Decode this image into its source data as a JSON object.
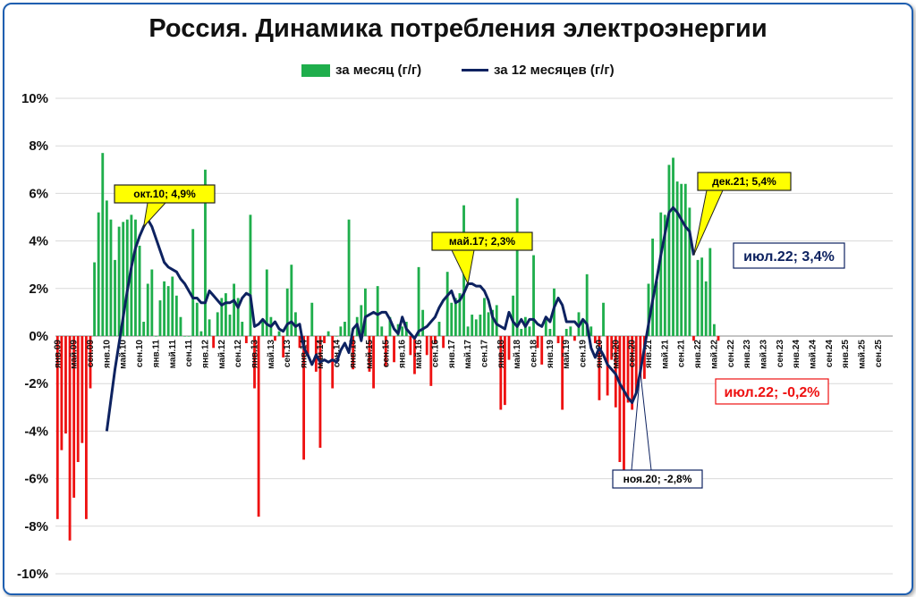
{
  "chart_data": {
    "type": "bar+line",
    "title": "Россия. Динамика потребления электроэнергии",
    "legend": {
      "placement": "top-center"
    },
    "series": [
      {
        "name": "за месяц (г/г)",
        "kind": "bar",
        "color_positive": "#1fae4c",
        "color_negative": "#ee1111"
      },
      {
        "name": "за 12 месяцев (г/г)",
        "kind": "line",
        "color": "#0d2260"
      }
    ],
    "ylim": [
      -10,
      10
    ],
    "yticks": [
      "10%",
      "8%",
      "6%",
      "4%",
      "2%",
      "0%",
      "-2%",
      "-4%",
      "-6%",
      "-8%",
      "-10%"
    ],
    "grid": true,
    "x_start": "2009-01",
    "x_end": "2025-12",
    "xticks": [
      "янв.09",
      "май.09",
      "сен.09",
      "янв.10",
      "май.10",
      "сен.10",
      "янв.11",
      "май.11",
      "сен.11",
      "янв.12",
      "май.12",
      "сен.12",
      "янв.13",
      "май.13",
      "сен.13",
      "янв.14",
      "май.14",
      "сен.14",
      "янв.15",
      "май.15",
      "сен.15",
      "янв.16",
      "май.16",
      "сен.16",
      "янв.17",
      "май.17",
      "сен.17",
      "янв.18",
      "май.18",
      "сен.18",
      "янв.19",
      "май.19",
      "сен.19",
      "янв.20",
      "май.20",
      "сен.20",
      "янв.21",
      "май.21",
      "сен.21",
      "янв.22",
      "май.22",
      "сен.22",
      "янв.23",
      "май.23",
      "сен.23",
      "янв.24",
      "май.24",
      "сен.24",
      "янв.25",
      "май.25",
      "сен.25"
    ],
    "monthly": [
      -7.7,
      -4.8,
      -4.1,
      -8.6,
      -6.8,
      -5.3,
      -4.5,
      -7.7,
      -2.2,
      3.1,
      5.2,
      7.7,
      5.7,
      4.9,
      3.2,
      4.6,
      4.8,
      4.9,
      5.1,
      4.9,
      3.8,
      0.6,
      2.2,
      2.8,
      0,
      1.5,
      2.3,
      2.1,
      2.5,
      1.7,
      0.8,
      0,
      0,
      4.5,
      1.4,
      0.2,
      7.0,
      0.7,
      -0.5,
      1.0,
      1.6,
      1.8,
      0.9,
      2.2,
      1.6,
      0.6,
      -0.3,
      5.1,
      -2.2,
      -7.6,
      0.6,
      2.8,
      0.8,
      -0.2,
      0.2,
      -0.9,
      2.0,
      3.0,
      1.0,
      -0.5,
      -5.2,
      -0.8,
      1.4,
      -1.5,
      -4.7,
      -0.3,
      0.2,
      -2.2,
      0,
      0.4,
      0.6,
      4.9,
      -1.4,
      0.8,
      1.3,
      2.0,
      -1.5,
      -2.2,
      2.1,
      0.4,
      -1.3,
      0.8,
      -1.1,
      0.5,
      0.4,
      0.6,
      -0.8,
      -1.6,
      2.9,
      1.1,
      -0.8,
      -2.1,
      -0.3,
      0.6,
      -0.5,
      2.7,
      1.4,
      1.6,
      1.8,
      5.5,
      0.4,
      0.9,
      0.7,
      0.9,
      1.6,
      1.0,
      1.1,
      1.3,
      -3.1,
      -2.9,
      -1.0,
      1.7,
      5.8,
      0.3,
      0.8,
      0.4,
      3.4,
      -0.5,
      -1.2,
      0.8,
      0.3,
      2.0,
      -0.3,
      -3.1,
      0.3,
      0.4,
      -0.2,
      1.0,
      0.6,
      2.6,
      0.4,
      -0.3,
      -2.7,
      1.4,
      -2.5,
      -1.0,
      -3.0,
      -5.3,
      -5.7,
      -2.8,
      -3.1,
      -2.4,
      -2.6,
      -1.8,
      2.2,
      4.1,
      2.3,
      5.2,
      5.1,
      7.2,
      7.5,
      6.5,
      6.4,
      6.4,
      5.4,
      -0.2,
      3.2,
      3.3,
      2.3,
      3.7,
      0.5,
      -0.2
    ],
    "rolling_12m": [
      null,
      null,
      null,
      null,
      null,
      null,
      null,
      null,
      null,
      null,
      null,
      null,
      -4.0,
      -2.7,
      -1.4,
      -0.3,
      0.8,
      1.9,
      2.9,
      3.7,
      4.2,
      4.6,
      4.9,
      4.6,
      4.1,
      3.6,
      3.1,
      2.9,
      2.8,
      2.7,
      2.4,
      2.2,
      1.9,
      1.6,
      1.6,
      1.4,
      1.4,
      1.9,
      1.7,
      1.5,
      1.3,
      1.4,
      1.4,
      1.5,
      1.2,
      1.6,
      1.8,
      1.7,
      0.4,
      0.5,
      0.7,
      0.5,
      0.4,
      0.6,
      0.3,
      0.2,
      0.5,
      0.6,
      0.4,
      0.5,
      -0.5,
      -0.8,
      -1.2,
      -0.8,
      -1.1,
      -1.0,
      -1.1,
      -1.0,
      -1.1,
      -0.6,
      -0.3,
      -0.7,
      0.3,
      0.5,
      -0.2,
      0.8,
      0.9,
      1.0,
      0.9,
      1.0,
      1.0,
      0.7,
      0.3,
      0.1,
      0.8,
      0.3,
      0.1,
      -0.1,
      0.2,
      0.3,
      0.4,
      0.6,
      0.8,
      1.2,
      1.5,
      1.7,
      1.9,
      1.4,
      1.5,
      1.8,
      2.2,
      2.2,
      2.1,
      2.1,
      1.9,
      1.5,
      0.8,
      0.5,
      0.4,
      0.3,
      1.0,
      0.6,
      0.4,
      0.7,
      0.4,
      0.7,
      0.7,
      0.5,
      0.4,
      0.8,
      0.6,
      1.2,
      1.6,
      1.3,
      0.6,
      0.6,
      0.6,
      0.4,
      0.7,
      0.5,
      -0.5,
      -0.9,
      -0.5,
      -0.8,
      -1.2,
      -1.4,
      -1.6,
      -2.0,
      -2.3,
      -2.6,
      -2.8,
      -2.4,
      -1.5,
      -0.5,
      0.5,
      1.5,
      2.4,
      3.4,
      4.3,
      5.2,
      5.4,
      5.2,
      4.9,
      4.6,
      4.4,
      3.4
    ],
    "annotations": [
      {
        "label": "окт.10; 4,9%",
        "style": "yellow"
      },
      {
        "label": "май.17; 2,3%",
        "style": "yellow"
      },
      {
        "label": "ноя.20; -2,8%",
        "style": "white-navy"
      },
      {
        "label": "дек.21; 5,4%",
        "style": "yellow"
      },
      {
        "label": "июл.22; 3,4%",
        "style": "white-navy-big"
      },
      {
        "label": "июл.22; -0,2%",
        "style": "white-red-big"
      }
    ]
  }
}
